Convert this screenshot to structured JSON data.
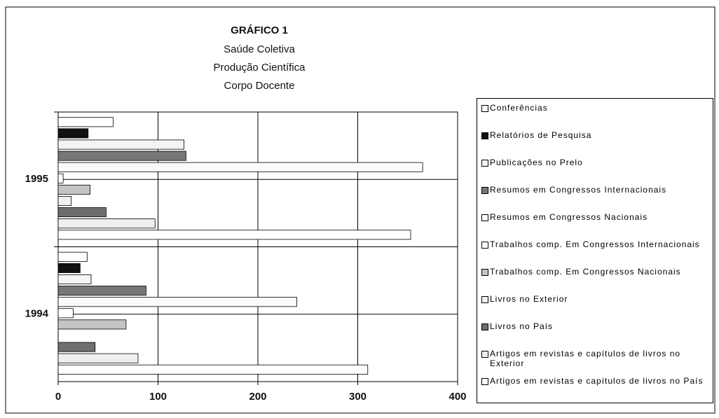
{
  "chart_data": {
    "type": "bar",
    "orientation": "horizontal",
    "title": "GRÁFICO 1",
    "subtitle": [
      "Saúde Coletiva",
      "Produção Científica",
      "Corpo Docente"
    ],
    "categories": [
      "1994",
      "1995"
    ],
    "xlim": [
      0,
      400
    ],
    "xticks": [
      0,
      100,
      200,
      300,
      400
    ],
    "grid": true,
    "legend": "right",
    "series": [
      {
        "name": "Conferências",
        "color": "#ffffff",
        "values": [
          29,
          55
        ]
      },
      {
        "name": "Relatórios de Pesquisa",
        "color": "#111111",
        "values": [
          22,
          30
        ]
      },
      {
        "name": "Publicações no Prelo",
        "color": "#f4f4f4",
        "values": [
          33,
          126
        ]
      },
      {
        "name": "Resumos em Congressos Internacionais",
        "color": "#777777",
        "values": [
          88,
          128
        ]
      },
      {
        "name": "Resumos em Congressos Nacionais",
        "color": "#fafafa",
        "values": [
          239,
          365
        ]
      },
      {
        "name": "Trabalhos comp. Em Congressos Internacionais",
        "color": "#ffffff",
        "values": [
          15,
          5
        ]
      },
      {
        "name": "Trabalhos comp. Em Congressos Nacionais",
        "color": "#c4c4c4",
        "values": [
          68,
          32
        ]
      },
      {
        "name": "Livros no Exterior",
        "color": "#f0f0f0",
        "values": [
          0,
          13
        ]
      },
      {
        "name": "Livros no País",
        "color": "#6e6e6e",
        "values": [
          37,
          48
        ]
      },
      {
        "name": "Artigos em revistas e capítulos de livros no Exterior",
        "color": "#efefef",
        "values": [
          80,
          97
        ]
      },
      {
        "name": "Artigos em revistas e capítulos de livros no País",
        "color": "#ffffff",
        "values": [
          310,
          353
        ]
      }
    ]
  }
}
